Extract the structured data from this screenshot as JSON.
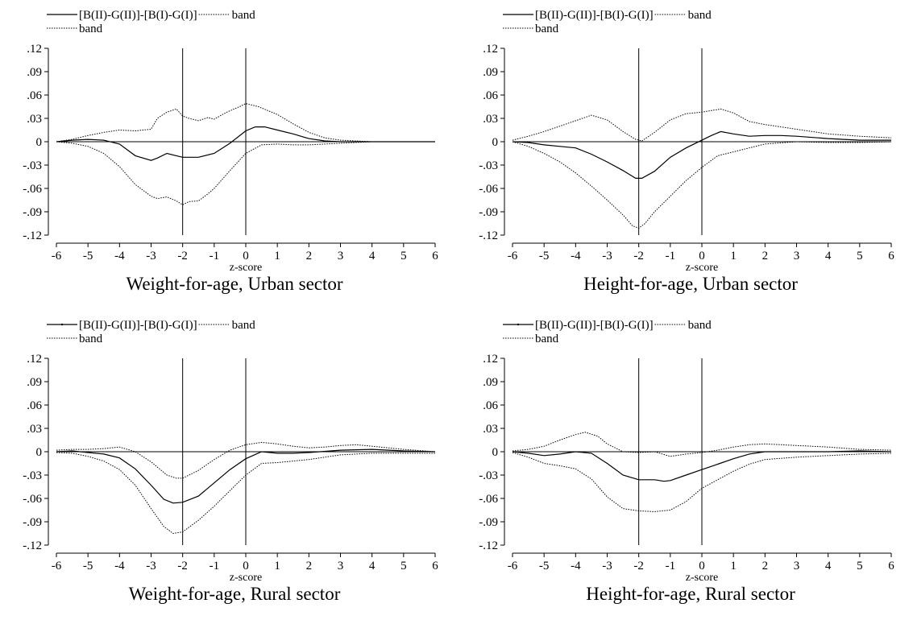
{
  "legend": {
    "estimate_label": "[B(II)-G(II)]-[B(I)-G(I)]",
    "band_label_1": "band",
    "band_label_2": "band"
  },
  "chart_data": [
    {
      "type": "line",
      "title": "Weight-for-age, Urban sector",
      "xlabel": "z-score",
      "ylabel": "",
      "xlim": [
        -6,
        6
      ],
      "ylim": [
        -0.12,
        0.12
      ],
      "xticks": [
        -6,
        -5,
        -4,
        -3,
        -2,
        -1,
        0,
        1,
        2,
        3,
        4,
        5,
        6
      ],
      "yticks": [
        0.12,
        0.09,
        0.06,
        0.03,
        0,
        -0.03,
        -0.06,
        -0.09,
        -0.12
      ],
      "ytick_labels": [
        ".12",
        ".09",
        ".06",
        ".03",
        "0",
        "-.03",
        "-.06",
        "-.09",
        "-.12"
      ],
      "vlines": [
        -2,
        0
      ],
      "hline": 0,
      "series": [
        {
          "name": "[B(II)-G(II)]-[B(I)-G(I)]",
          "style": "solid",
          "x": [
            -6,
            -5.5,
            -5,
            -4.5,
            -4,
            -3.5,
            -3,
            -2.8,
            -2.5,
            -2.2,
            -2,
            -1.5,
            -1,
            -0.5,
            0,
            0.3,
            0.6,
            1,
            1.5,
            2,
            2.5,
            3,
            4,
            5,
            6
          ],
          "y": [
            0,
            0.002,
            0.003,
            0.002,
            -0.003,
            -0.018,
            -0.024,
            -0.021,
            -0.015,
            -0.018,
            -0.02,
            -0.02,
            -0.015,
            -0.002,
            0.014,
            0.019,
            0.019,
            0.015,
            0.01,
            0.004,
            0.001,
            0.0,
            0.0,
            0.0,
            0.0
          ]
        },
        {
          "name": "band",
          "style": "dotted",
          "x": [
            -6,
            -5.5,
            -5,
            -4.5,
            -4,
            -3.5,
            -3,
            -2.8,
            -2.5,
            -2.2,
            -2,
            -1.8,
            -1.5,
            -1.2,
            -1,
            -0.6,
            -0.2,
            0,
            0.4,
            1,
            1.5,
            2,
            2.5,
            3,
            4,
            5,
            6
          ],
          "y": [
            0,
            0.003,
            0.008,
            0.012,
            0.015,
            0.014,
            0.016,
            0.03,
            0.038,
            0.042,
            0.033,
            0.03,
            0.027,
            0.031,
            0.029,
            0.038,
            0.045,
            0.049,
            0.045,
            0.035,
            0.023,
            0.012,
            0.005,
            0.002,
            0.0,
            0.0,
            0.0
          ]
        },
        {
          "name": "band",
          "style": "dotted",
          "x": [
            -6,
            -5.5,
            -5,
            -4.5,
            -4,
            -3.5,
            -3,
            -2.8,
            -2.5,
            -2.2,
            -2,
            -1.8,
            -1.5,
            -1.2,
            -1,
            -0.5,
            0,
            0.5,
            1,
            1.5,
            2,
            2.5,
            3,
            4,
            5,
            6
          ],
          "y": [
            0,
            -0.002,
            -0.006,
            -0.015,
            -0.032,
            -0.055,
            -0.07,
            -0.073,
            -0.071,
            -0.076,
            -0.081,
            -0.077,
            -0.076,
            -0.067,
            -0.06,
            -0.037,
            -0.015,
            -0.004,
            -0.003,
            -0.004,
            -0.004,
            -0.003,
            -0.002,
            0.0,
            0.0,
            0.0
          ]
        }
      ]
    },
    {
      "type": "line",
      "title": "Height-for-age, Urban sector",
      "xlabel": "z-score",
      "ylabel": "",
      "xlim": [
        -6,
        6
      ],
      "ylim": [
        -0.12,
        0.12
      ],
      "xticks": [
        -6,
        -5,
        -4,
        -3,
        -2,
        -1,
        0,
        1,
        2,
        3,
        4,
        5,
        6
      ],
      "yticks": [
        0.12,
        0.09,
        0.06,
        0.03,
        0,
        -0.03,
        -0.06,
        -0.09,
        -0.12
      ],
      "ytick_labels": [
        ".12",
        ".09",
        ".06",
        ".03",
        "0",
        "-.03",
        "-.06",
        "-.09",
        "-.12"
      ],
      "vlines": [
        -2,
        0
      ],
      "hline": 0,
      "series": [
        {
          "name": "[B(II)-G(II)]-[B(I)-G(I)]",
          "style": "solid",
          "x": [
            -6,
            -5.5,
            -5,
            -4.5,
            -4,
            -3.5,
            -3,
            -2.5,
            -2.1,
            -1.9,
            -1.5,
            -1,
            -0.5,
            0,
            0.3,
            0.6,
            1,
            1.5,
            2,
            2.5,
            3,
            4,
            5,
            6
          ],
          "y": [
            0,
            -0.001,
            -0.004,
            -0.006,
            -0.008,
            -0.016,
            -0.026,
            -0.037,
            -0.047,
            -0.047,
            -0.038,
            -0.02,
            -0.008,
            0.002,
            0.008,
            0.013,
            0.01,
            0.007,
            0.008,
            0.008,
            0.007,
            0.004,
            0.002,
            0.002
          ]
        },
        {
          "name": "band",
          "style": "dotted",
          "x": [
            -6,
            -5.5,
            -5,
            -4.5,
            -4,
            -3.5,
            -3,
            -2.5,
            -2.1,
            -1.9,
            -1.5,
            -1,
            -0.5,
            0,
            0.3,
            0.6,
            1,
            1.5,
            2,
            3,
            4,
            5,
            6
          ],
          "y": [
            0.002,
            0.007,
            0.013,
            0.02,
            0.027,
            0.034,
            0.028,
            0.013,
            0.003,
            0.001,
            0.012,
            0.028,
            0.036,
            0.038,
            0.04,
            0.042,
            0.037,
            0.026,
            0.022,
            0.016,
            0.01,
            0.007,
            0.005
          ]
        },
        {
          "name": "band",
          "style": "dotted",
          "x": [
            -6,
            -5.5,
            -5,
            -4.5,
            -4,
            -3.5,
            -3,
            -2.5,
            -2.2,
            -2,
            -1.8,
            -1.5,
            -1,
            -0.5,
            0,
            0.5,
            1,
            1.5,
            2,
            3,
            4,
            5,
            6
          ],
          "y": [
            0,
            -0.006,
            -0.015,
            -0.026,
            -0.04,
            -0.057,
            -0.075,
            -0.094,
            -0.108,
            -0.111,
            -0.105,
            -0.09,
            -0.07,
            -0.05,
            -0.033,
            -0.018,
            -0.013,
            -0.008,
            -0.003,
            0.0,
            -0.001,
            -0.001,
            0.0
          ]
        }
      ]
    },
    {
      "type": "line",
      "title": "Weight-for-age, Rural sector",
      "xlabel": "z-score",
      "ylabel": "",
      "xlim": [
        -6,
        6
      ],
      "ylim": [
        -0.12,
        0.12
      ],
      "xticks": [
        -6,
        -5,
        -4,
        -3,
        -2,
        -1,
        0,
        1,
        2,
        3,
        4,
        5,
        6
      ],
      "yticks": [
        0.12,
        0.09,
        0.06,
        0.03,
        0,
        -0.03,
        -0.06,
        -0.09,
        -0.12
      ],
      "ytick_labels": [
        ".12",
        ".09",
        ".06",
        ".03",
        "0",
        "-.03",
        "-.06",
        "-.09",
        "-.12"
      ],
      "vlines": [
        -2,
        0
      ],
      "hline": 0,
      "series": [
        {
          "name": "[B(II)-G(II)]-[B(I)-G(I)]",
          "style": "solid",
          "x": [
            -6,
            -5.5,
            -5,
            -4.5,
            -4,
            -3.5,
            -3,
            -2.6,
            -2.3,
            -2,
            -1.5,
            -1,
            -0.5,
            0,
            0.5,
            1,
            1.5,
            2,
            3,
            4,
            5,
            6
          ],
          "y": [
            0,
            0.001,
            -0.001,
            -0.003,
            -0.008,
            -0.022,
            -0.043,
            -0.061,
            -0.066,
            -0.065,
            -0.057,
            -0.04,
            -0.023,
            -0.009,
            0.0,
            -0.002,
            -0.002,
            -0.001,
            0.002,
            0.003,
            0.001,
            0.0
          ]
        },
        {
          "name": "band",
          "style": "dotted",
          "x": [
            -6,
            -5.5,
            -5,
            -4.5,
            -4,
            -3.5,
            -3,
            -2.5,
            -2.2,
            -2,
            -1.5,
            -1,
            -0.5,
            0,
            0.5,
            1,
            1.5,
            2,
            2.5,
            3,
            3.5,
            4,
            5,
            6
          ],
          "y": [
            0.002,
            0.003,
            0.003,
            0.004,
            0.006,
            0.0,
            -0.013,
            -0.03,
            -0.034,
            -0.034,
            -0.024,
            -0.01,
            0.002,
            0.009,
            0.012,
            0.01,
            0.007,
            0.005,
            0.006,
            0.008,
            0.009,
            0.007,
            0.003,
            0.0
          ]
        },
        {
          "name": "band",
          "style": "dotted",
          "x": [
            -6,
            -5.5,
            -5,
            -4.5,
            -4,
            -3.5,
            -3,
            -2.6,
            -2.3,
            -2,
            -1.5,
            -1,
            -0.5,
            0,
            0.5,
            1,
            1.5,
            2,
            3,
            4,
            5,
            6
          ],
          "y": [
            -0.001,
            -0.002,
            -0.006,
            -0.012,
            -0.023,
            -0.043,
            -0.073,
            -0.096,
            -0.105,
            -0.103,
            -0.088,
            -0.07,
            -0.05,
            -0.03,
            -0.015,
            -0.014,
            -0.012,
            -0.01,
            -0.004,
            -0.002,
            -0.002,
            -0.002
          ]
        }
      ]
    },
    {
      "type": "line",
      "title": "Height-for-age, Rural sector",
      "xlabel": "z-score",
      "ylabel": "",
      "xlim": [
        -6,
        6
      ],
      "ylim": [
        -0.12,
        0.12
      ],
      "xticks": [
        -6,
        -5,
        -4,
        -3,
        -2,
        -1,
        0,
        1,
        2,
        3,
        4,
        5,
        6
      ],
      "yticks": [
        0.12,
        0.09,
        0.06,
        0.03,
        0,
        -0.03,
        -0.06,
        -0.09,
        -0.12
      ],
      "ytick_labels": [
        ".12",
        ".09",
        ".06",
        ".03",
        "0",
        "-.03",
        "-.06",
        "-.09",
        "-.12"
      ],
      "vlines": [
        -2,
        0
      ],
      "hline": 0,
      "series": [
        {
          "name": "[B(II)-G(II)]-[B(I)-G(I)]",
          "style": "solid",
          "x": [
            -6,
            -5.5,
            -5,
            -4.5,
            -4,
            -3.5,
            -3,
            -2.5,
            -2,
            -1.5,
            -1.2,
            -1,
            -0.5,
            0,
            0.5,
            1,
            1.5,
            2,
            3,
            4,
            5,
            6
          ],
          "y": [
            0,
            -0.002,
            -0.005,
            -0.003,
            0.0,
            -0.002,
            -0.015,
            -0.03,
            -0.036,
            -0.036,
            -0.038,
            -0.037,
            -0.03,
            -0.023,
            -0.016,
            -0.009,
            -0.003,
            0.0,
            0.0,
            0.0,
            0.001,
            0.0
          ]
        },
        {
          "name": "band",
          "style": "dotted",
          "x": [
            -6,
            -5.5,
            -5,
            -4.5,
            -4,
            -3.7,
            -3.3,
            -3,
            -2.5,
            -2,
            -1.5,
            -1,
            -0.5,
            0,
            0.5,
            1,
            1.5,
            2,
            2.5,
            3,
            4,
            5,
            6
          ],
          "y": [
            0.001,
            0.003,
            0.007,
            0.015,
            0.022,
            0.025,
            0.02,
            0.01,
            0.0,
            -0.001,
            0.0,
            -0.006,
            -0.003,
            -0.001,
            0.002,
            0.006,
            0.009,
            0.01,
            0.009,
            0.008,
            0.006,
            0.003,
            0.002
          ]
        },
        {
          "name": "band",
          "style": "dotted",
          "x": [
            -6,
            -5.5,
            -5,
            -4.5,
            -4,
            -3.5,
            -3,
            -2.5,
            -2,
            -1.5,
            -1,
            -0.5,
            0,
            0.5,
            1,
            1.5,
            2,
            3,
            4,
            5,
            6
          ],
          "y": [
            -0.001,
            -0.007,
            -0.015,
            -0.018,
            -0.022,
            -0.035,
            -0.058,
            -0.073,
            -0.076,
            -0.077,
            -0.075,
            -0.064,
            -0.047,
            -0.036,
            -0.025,
            -0.016,
            -0.01,
            -0.007,
            -0.005,
            -0.003,
            -0.002
          ]
        }
      ]
    }
  ]
}
